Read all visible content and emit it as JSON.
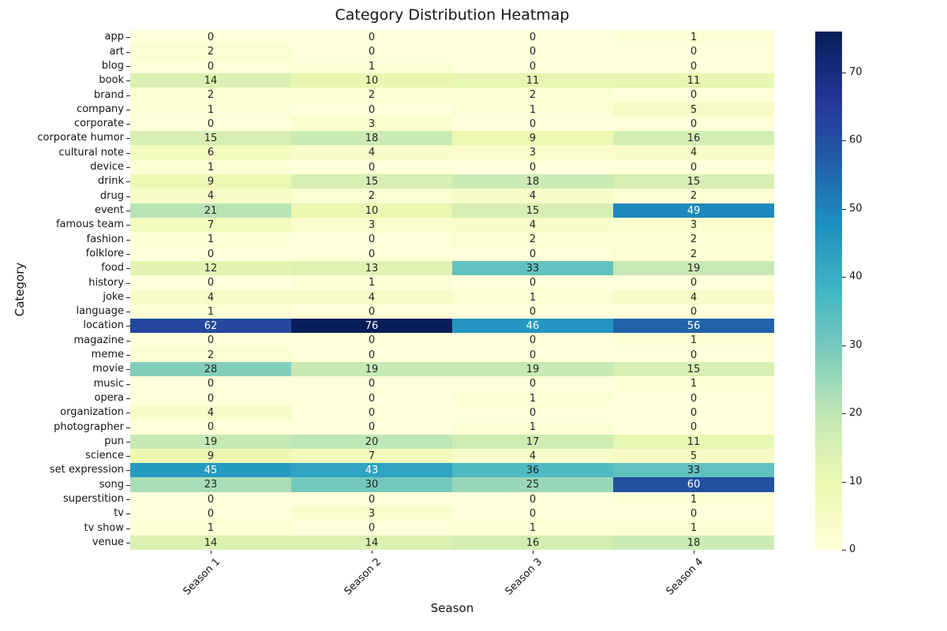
{
  "chart_data": {
    "type": "heatmap",
    "title": "Category Distribution Heatmap",
    "xlabel": "Season",
    "ylabel": "Category",
    "columns": [
      "Season 1",
      "Season 2",
      "Season 3",
      "Season 4"
    ],
    "rows": [
      "app",
      "art",
      "blog",
      "book",
      "brand",
      "company",
      "corporate",
      "corporate humor",
      "cultural note",
      "device",
      "drink",
      "drug",
      "event",
      "famous team",
      "fashion",
      "folklore",
      "food",
      "history",
      "joke",
      "language",
      "location",
      "magazine",
      "meme",
      "movie",
      "music",
      "opera",
      "organization",
      "photographer",
      "pun",
      "science",
      "set expression",
      "song",
      "superstition",
      "tv",
      "tv show",
      "venue"
    ],
    "values": [
      [
        0,
        0,
        0,
        1
      ],
      [
        2,
        0,
        0,
        0
      ],
      [
        0,
        1,
        0,
        0
      ],
      [
        14,
        10,
        11,
        11
      ],
      [
        2,
        2,
        2,
        0
      ],
      [
        1,
        0,
        1,
        5
      ],
      [
        0,
        3,
        0,
        0
      ],
      [
        15,
        18,
        9,
        16
      ],
      [
        6,
        4,
        3,
        4
      ],
      [
        1,
        0,
        0,
        0
      ],
      [
        9,
        15,
        18,
        15
      ],
      [
        4,
        2,
        4,
        2
      ],
      [
        21,
        10,
        15,
        49
      ],
      [
        7,
        3,
        4,
        3
      ],
      [
        1,
        0,
        2,
        2
      ],
      [
        0,
        0,
        0,
        2
      ],
      [
        12,
        13,
        33,
        19
      ],
      [
        0,
        1,
        0,
        0
      ],
      [
        4,
        4,
        1,
        4
      ],
      [
        1,
        0,
        0,
        0
      ],
      [
        62,
        76,
        46,
        56
      ],
      [
        0,
        0,
        0,
        1
      ],
      [
        2,
        0,
        0,
        0
      ],
      [
        28,
        19,
        19,
        15
      ],
      [
        0,
        0,
        0,
        1
      ],
      [
        0,
        0,
        1,
        0
      ],
      [
        4,
        0,
        0,
        0
      ],
      [
        0,
        0,
        1,
        0
      ],
      [
        19,
        20,
        17,
        11
      ],
      [
        9,
        7,
        4,
        5
      ],
      [
        45,
        43,
        36,
        33
      ],
      [
        23,
        30,
        25,
        60
      ],
      [
        0,
        0,
        0,
        1
      ],
      [
        0,
        3,
        0,
        0
      ],
      [
        1,
        0,
        1,
        1
      ],
      [
        14,
        14,
        16,
        18
      ]
    ],
    "vmin": 0,
    "vmax": 76,
    "colormap": {
      "name": "YlGnBu",
      "stops": [
        "#ffffd9",
        "#edf8b1",
        "#c7e9b4",
        "#7fcdbb",
        "#41b6c4",
        "#1d91c0",
        "#225ea8",
        "#253494",
        "#081d58"
      ]
    },
    "colorbar_ticks": [
      0,
      10,
      20,
      30,
      40,
      50,
      60,
      70
    ],
    "annotation_colors": {
      "dark": "#262626",
      "light": "#ffffff"
    },
    "grid": false,
    "legend_position": "colorbar-right"
  }
}
